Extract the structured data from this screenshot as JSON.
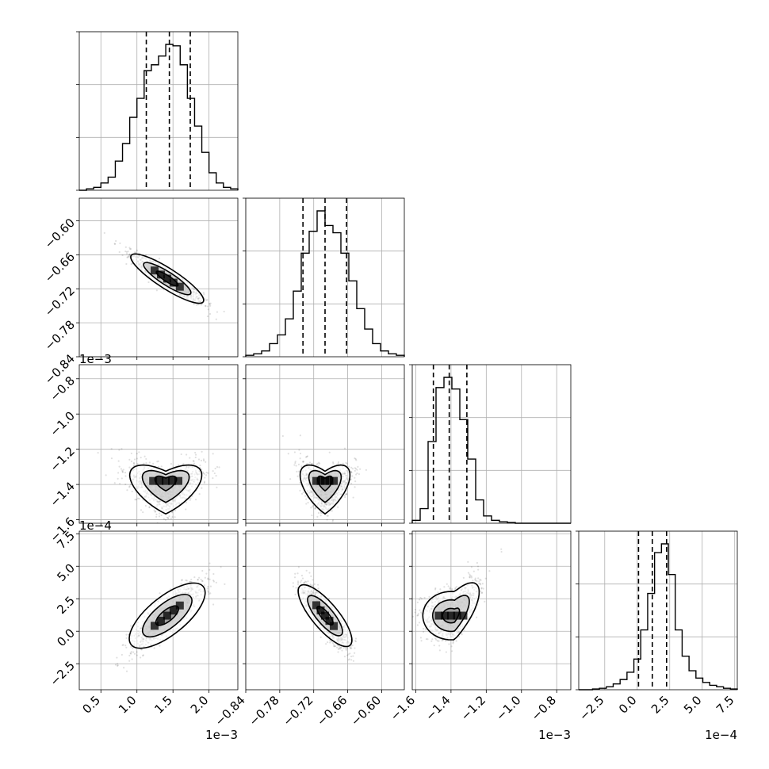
{
  "chart_data": {
    "type": "corner",
    "variables": [
      {
        "range": [
          0.2,
          2.4
        ],
        "ticks": [
          0.5,
          1.0,
          1.5,
          2.0
        ],
        "tick_labels": [
          "0.5",
          "1.0",
          "1.5",
          "2.0"
        ],
        "offset_label": "1e−3",
        "hist": [
          0,
          0.01,
          0.02,
          0.05,
          0.09,
          0.2,
          0.32,
          0.5,
          0.63,
          0.82,
          0.86,
          0.92,
          1.0,
          0.99,
          0.86,
          0.63,
          0.44,
          0.26,
          0.12,
          0.05,
          0.02,
          0.01
        ],
        "quantiles": [
          1.13,
          1.45,
          1.74
        ]
      },
      {
        "range": [
          -0.84,
          -0.56
        ],
        "ticks": [
          -0.84,
          -0.78,
          -0.72,
          -0.66,
          -0.6
        ],
        "tick_labels": [
          "−0.84",
          "−0.78",
          "−0.72",
          "−0.66",
          "−0.60"
        ],
        "offset_label": "",
        "hist": [
          0.01,
          0.02,
          0.04,
          0.09,
          0.15,
          0.26,
          0.45,
          0.71,
          0.86,
          1.0,
          0.9,
          0.85,
          0.71,
          0.52,
          0.33,
          0.19,
          0.09,
          0.04,
          0.02,
          0.01
        ],
        "quantiles": [
          -0.739,
          -0.7,
          -0.662
        ]
      },
      {
        "range": [
          -1.62,
          -0.72
        ],
        "ticks": [
          -1.6,
          -1.4,
          -1.2,
          -1.0,
          -0.8
        ],
        "tick_labels": [
          "−1.6",
          "−1.4",
          "−1.2",
          "−1.0",
          "−0.8"
        ],
        "offset_label": "1e−3",
        "hist": [
          0.02,
          0.1,
          0.56,
          0.93,
          1.0,
          0.92,
          0.71,
          0.44,
          0.16,
          0.05,
          0.02,
          0.01,
          0.005,
          0,
          0,
          0,
          0,
          0,
          0,
          0
        ],
        "quantiles": [
          -1.5,
          -1.41,
          -1.31
        ]
      },
      {
        "range": [
          -4.5,
          7.7
        ],
        "ticks": [
          -2.5,
          0.0,
          2.5,
          5.0,
          7.5
        ],
        "tick_labels": [
          "−2.5",
          "0.0",
          "2.5",
          "5.0",
          "7.5"
        ],
        "offset_label": "1e−4",
        "hist": [
          0,
          0,
          0.005,
          0.01,
          0.02,
          0.04,
          0.07,
          0.12,
          0.21,
          0.41,
          0.66,
          0.94,
          1.0,
          0.79,
          0.41,
          0.23,
          0.13,
          0.08,
          0.05,
          0.03,
          0.02,
          0.01,
          0.005
        ],
        "quantiles": [
          0.1,
          1.16,
          2.26
        ]
      }
    ],
    "pairs": [
      {
        "row": 1,
        "col": 0,
        "shape": "linear",
        "center": [
          1.42,
          -0.702
        ],
        "sigma": [
          0.25,
          0.022
        ],
        "corr": -0.93
      },
      {
        "row": 2,
        "col": 0,
        "shape": "vshape",
        "center": [
          1.4,
          -1.38
        ],
        "sigma": [
          0.25,
          0.11
        ]
      },
      {
        "row": 2,
        "col": 1,
        "shape": "vshape",
        "center": [
          -0.7,
          -1.38
        ],
        "sigma": [
          0.022,
          0.11
        ]
      },
      {
        "row": 3,
        "col": 0,
        "shape": "linear",
        "center": [
          1.42,
          1.2
        ],
        "sigma": [
          0.25,
          1.3
        ],
        "corr": 0.86
      },
      {
        "row": 3,
        "col": 1,
        "shape": "linear",
        "center": [
          -0.7,
          1.2
        ],
        "sigma": [
          0.022,
          1.3
        ],
        "corr": -0.88
      },
      {
        "row": 3,
        "col": 2,
        "shape": "bend",
        "center": [
          -1.4,
          1.2
        ],
        "sigma": [
          0.1,
          1.3
        ]
      }
    ],
    "grid": true,
    "density_levels": 3,
    "sample_color": "#000000",
    "hist_color": "#000000",
    "grid_color": "#b0b0b0"
  }
}
